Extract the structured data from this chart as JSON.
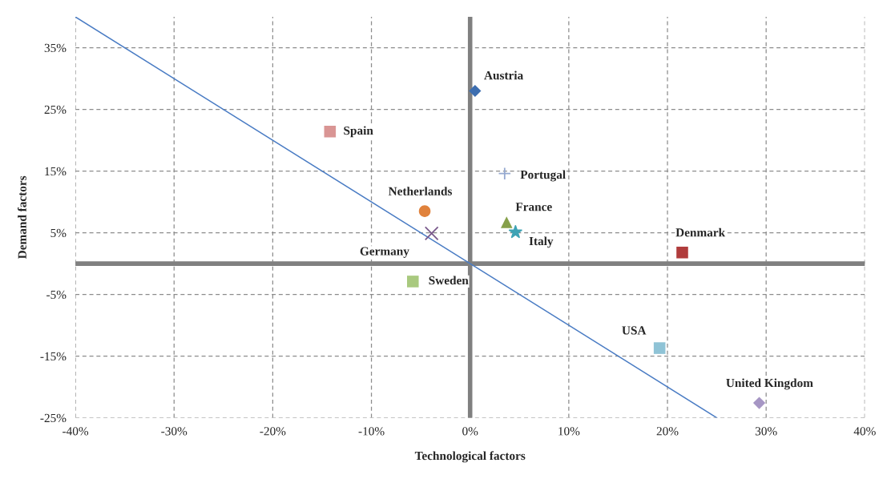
{
  "chart_data": {
    "type": "scatter",
    "xlabel": "Technological factors",
    "ylabel": "Demand factors",
    "xlim": [
      -40,
      40
    ],
    "ylim": [
      -25,
      40
    ],
    "xticks": [
      {
        "value": -40,
        "label": "-40%"
      },
      {
        "value": -30,
        "label": "-30%"
      },
      {
        "value": -20,
        "label": "-20%"
      },
      {
        "value": -10,
        "label": "-10%"
      },
      {
        "value": 0,
        "label": "0%"
      },
      {
        "value": 10,
        "label": "10%"
      },
      {
        "value": 20,
        "label": "20%"
      },
      {
        "value": 30,
        "label": "30%"
      },
      {
        "value": 40,
        "label": "40%"
      }
    ],
    "yticks": [
      {
        "value": -25,
        "label": "-25%"
      },
      {
        "value": -15,
        "label": "-15%"
      },
      {
        "value": -5,
        "label": "-5%"
      },
      {
        "value": 5,
        "label": "5%"
      },
      {
        "value": 15,
        "label": "15%"
      },
      {
        "value": 25,
        "label": "25%"
      },
      {
        "value": 35,
        "label": "35%"
      }
    ],
    "grid": true,
    "series": [
      {
        "name": "Austria",
        "color": "#3d6eb0",
        "marker": "diamond",
        "x": [
          0.5
        ],
        "values": [
          28.0
        ]
      },
      {
        "name": "Spain",
        "color": "#d99594",
        "marker": "square",
        "x": [
          -14.2
        ],
        "values": [
          21.4
        ]
      },
      {
        "name": "Portugal",
        "color": "#95a9d0",
        "marker": "plus",
        "x": [
          3.5
        ],
        "values": [
          14.6
        ]
      },
      {
        "name": "Netherlands",
        "color": "#e0823c",
        "marker": "circle",
        "x": [
          -4.6
        ],
        "values": [
          8.5
        ]
      },
      {
        "name": "Germany",
        "color": "#7a5a8c",
        "marker": "cross",
        "x": [
          -3.9
        ],
        "values": [
          4.9
        ]
      },
      {
        "name": "France",
        "color": "#86a04a",
        "marker": "triangle",
        "x": [
          3.7
        ],
        "values": [
          6.7
        ]
      },
      {
        "name": "Italy",
        "color": "#3fa3b5",
        "marker": "star",
        "x": [
          4.6
        ],
        "values": [
          5.1
        ]
      },
      {
        "name": "Sweden",
        "color": "#a9c97f",
        "marker": "square",
        "x": [
          -5.8
        ],
        "values": [
          -2.9
        ]
      },
      {
        "name": "Denmark",
        "color": "#b03c3c",
        "marker": "square",
        "x": [
          21.5
        ],
        "values": [
          1.8
        ]
      },
      {
        "name": "USA",
        "color": "#8fc3d6",
        "marker": "square",
        "x": [
          19.2
        ],
        "values": [
          -13.7
        ]
      },
      {
        "name": "United Kingdom",
        "color": "#a696c4",
        "marker": "diamond",
        "x": [
          29.3
        ],
        "values": [
          -22.6
        ]
      },
      {
        "type": "line",
        "color": "#4a7cc4",
        "marker": "none",
        "x": [
          -40,
          25
        ],
        "values": [
          40,
          -25
        ]
      }
    ]
  }
}
